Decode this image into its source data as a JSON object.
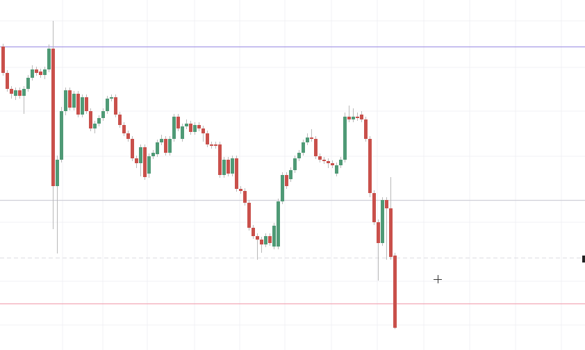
{
  "chart_data": {
    "type": "candlestick",
    "ylim": [
      0,
      504
    ],
    "up_color": "#4f9a76",
    "down_color": "#c9504b",
    "wick_color": "#b8b8b8",
    "series": [
      {
        "open": [
          437,
          399,
          376,
          366,
          374,
          366,
          376,
          392,
          404,
          401,
          396,
          404,
          434,
          236,
          274,
          344,
          374,
          349,
          369,
          339,
          364,
          344,
          319,
          326,
          334,
          344,
          362,
          364,
          339,
          324,
          312,
          304,
          276,
          269,
          292,
          254,
          279,
          282,
          299,
          304,
          284,
          304,
          336,
          304,
          322,
          326,
          314,
          324,
          319,
          312,
          296,
          296,
          296,
          252,
          274,
          254,
          276,
          232,
          229,
          212,
          176,
          164,
          159,
          152,
          164,
          149,
          149,
          214,
          252,
          246,
          259,
          276,
          284,
          299,
          306,
          304,
          279,
          274,
          272,
          269,
          254,
          266,
          274,
          336,
          332,
          336,
          339,
          332,
          304,
          226,
          184,
          154,
          216,
          204,
          136
        ],
        "high": [
          441,
          403,
          380,
          378,
          378,
          380,
          396,
          410,
          408,
          405,
          408,
          440,
          474,
          280,
          350,
          378,
          378,
          373,
          373,
          368,
          368,
          348,
          330,
          338,
          348,
          366,
          368,
          368,
          343,
          328,
          316,
          308,
          280,
          296,
          296,
          283,
          288,
          303,
          310,
          308,
          308,
          340,
          340,
          326,
          332,
          330,
          328,
          328,
          323,
          316,
          300,
          300,
          300,
          278,
          278,
          280,
          280,
          236,
          233,
          216,
          180,
          168,
          163,
          168,
          168,
          183,
          218,
          256,
          256,
          263,
          280,
          288,
          303,
          312,
          318,
          308,
          283,
          278,
          276,
          273,
          270,
          278,
          342,
          352,
          348,
          342,
          344,
          336,
          308,
          230,
          188,
          220,
          220,
          249,
          140
        ],
        "low": [
          395,
          372,
          362,
          360,
          362,
          340,
          372,
          388,
          395,
          392,
          390,
          400,
          174,
          139,
          270,
          338,
          345,
          345,
          335,
          335,
          340,
          315,
          312,
          322,
          330,
          340,
          358,
          335,
          320,
          308,
          300,
          272,
          262,
          250,
          245,
          248,
          275,
          278,
          295,
          280,
          280,
          300,
          315,
          300,
          318,
          310,
          310,
          315,
          300,
          292,
          290,
          290,
          248,
          248,
          250,
          250,
          228,
          225,
          208,
          172,
          160,
          130,
          140,
          148,
          150,
          145,
          145,
          210,
          232,
          242,
          255,
          272,
          280,
          295,
          300,
          275,
          270,
          268,
          262,
          262,
          250,
          262,
          270,
          328,
          328,
          330,
          328,
          300,
          220,
          180,
          100,
          150,
          130,
          130,
          30
        ],
        "close": [
          399,
          376,
          369,
          374,
          366,
          376,
          392,
          404,
          399,
          396,
          404,
          434,
          236,
          274,
          344,
          374,
          349,
          369,
          339,
          364,
          344,
          319,
          326,
          334,
          344,
          362,
          364,
          339,
          324,
          312,
          304,
          276,
          269,
          292,
          249,
          279,
          284,
          299,
          304,
          284,
          304,
          336,
          319,
          322,
          326,
          314,
          324,
          319,
          312,
          296,
          294,
          294,
          252,
          274,
          254,
          276,
          232,
          229,
          212,
          176,
          164,
          159,
          152,
          164,
          154,
          179,
          214,
          252,
          236,
          259,
          276,
          284,
          299,
          306,
          304,
          279,
          274,
          272,
          269,
          266,
          266,
          274,
          336,
          332,
          336,
          334,
          332,
          304,
          226,
          184,
          154,
          216,
          204,
          134,
          32
        ]
      }
    ],
    "levels": [
      {
        "value": 437,
        "color": "#a79be6"
      },
      {
        "value": 216,
        "color": "#cfcfd8"
      },
      {
        "value": 133,
        "color": "#e2e2e6",
        "dashed": true
      },
      {
        "value": 67,
        "color": "#f2a7b6"
      }
    ]
  }
}
